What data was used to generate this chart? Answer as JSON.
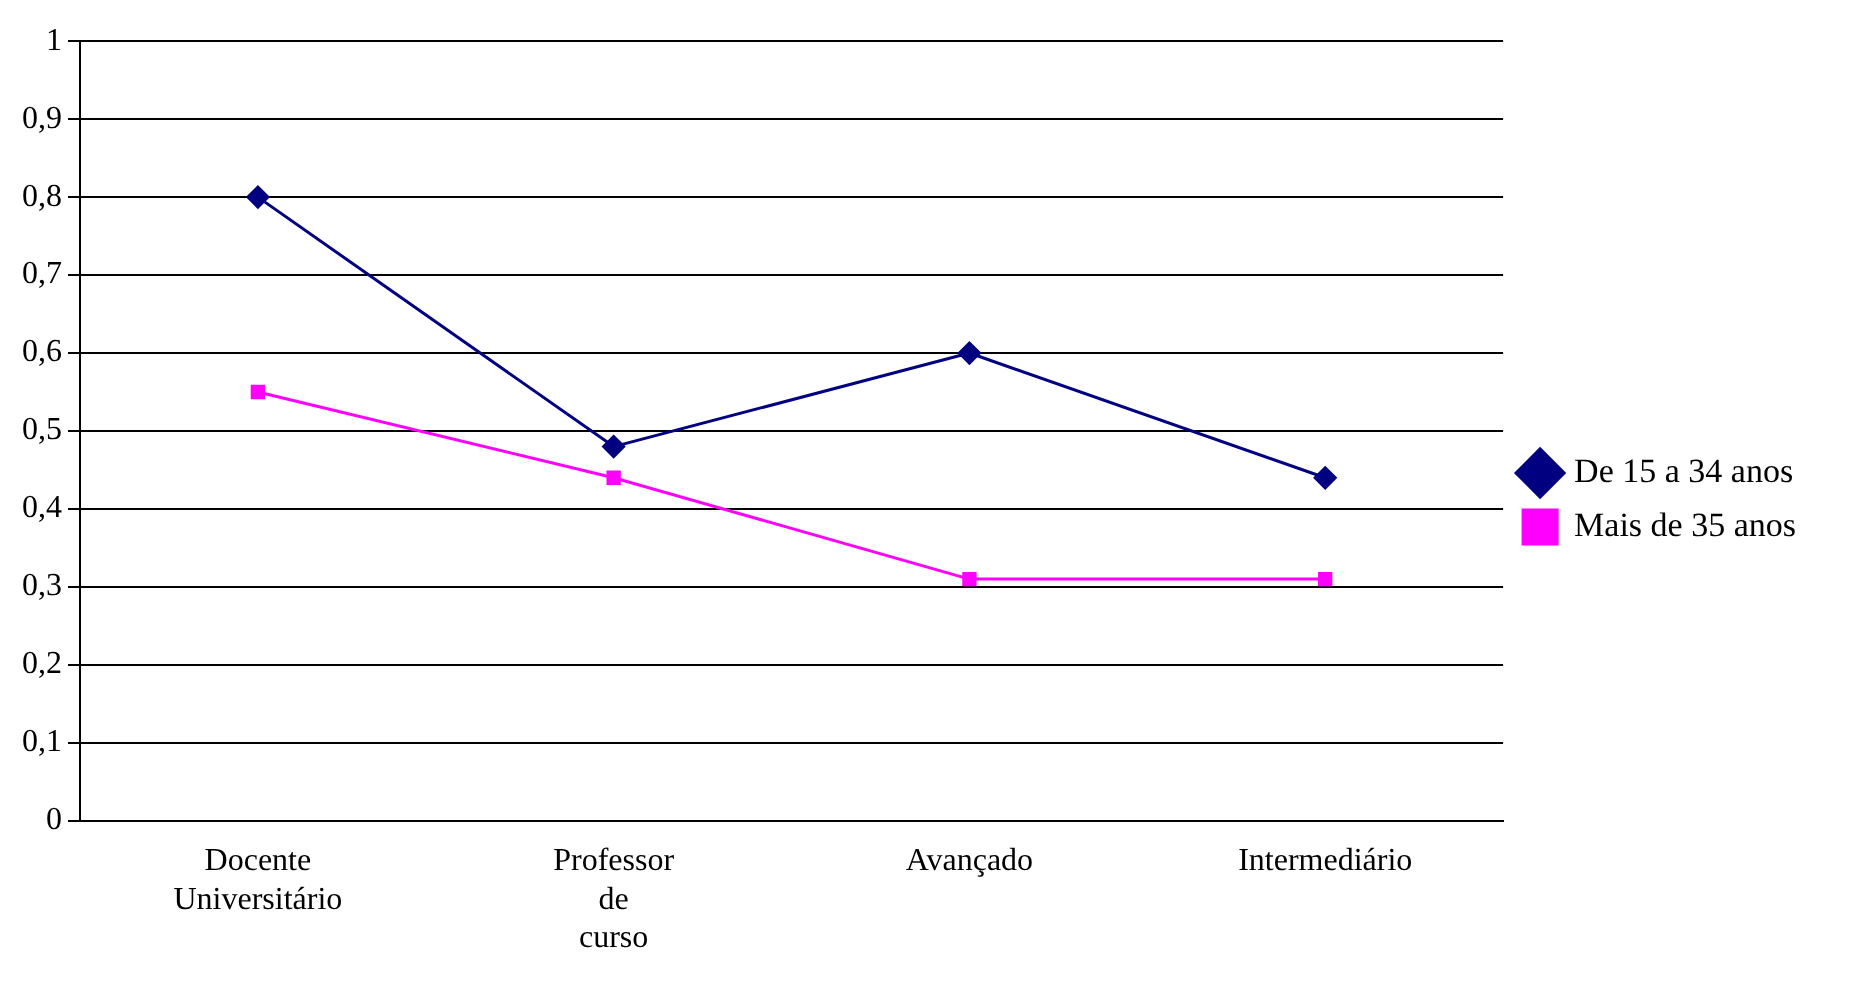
{
  "chart_data": {
    "type": "line",
    "categories": [
      "Docente Universitário",
      "Professor de curso",
      "Avançado",
      "Intermediário"
    ],
    "series": [
      {
        "name": "De 15 a 34 anos",
        "color": "#000080",
        "values": [
          0.8,
          0.48,
          0.6,
          0.44
        ],
        "marker": "diamond"
      },
      {
        "name": "Mais de 35 anos",
        "color": "#ff00ff",
        "values": [
          0.55,
          0.44,
          0.31,
          0.31
        ],
        "marker": "square"
      }
    ],
    "ylim": [
      0,
      1
    ],
    "yticks": [
      0,
      {
        "value": 0.1,
        "label": "0,1"
      },
      {
        "value": 0.2,
        "label": "0,2"
      },
      {
        "value": 0.3,
        "label": "0,3"
      },
      {
        "value": 0.4,
        "label": "0,4"
      },
      {
        "value": 0.5,
        "label": "0,5"
      },
      {
        "value": 0.6,
        "label": "0,6"
      },
      {
        "value": 0.7,
        "label": "0,7"
      },
      {
        "value": 0.8,
        "label": "0,8"
      },
      {
        "value": 0.9,
        "label": "0,9"
      },
      1
    ],
    "grid": "y",
    "legend": "right",
    "line_style": "solid"
  }
}
